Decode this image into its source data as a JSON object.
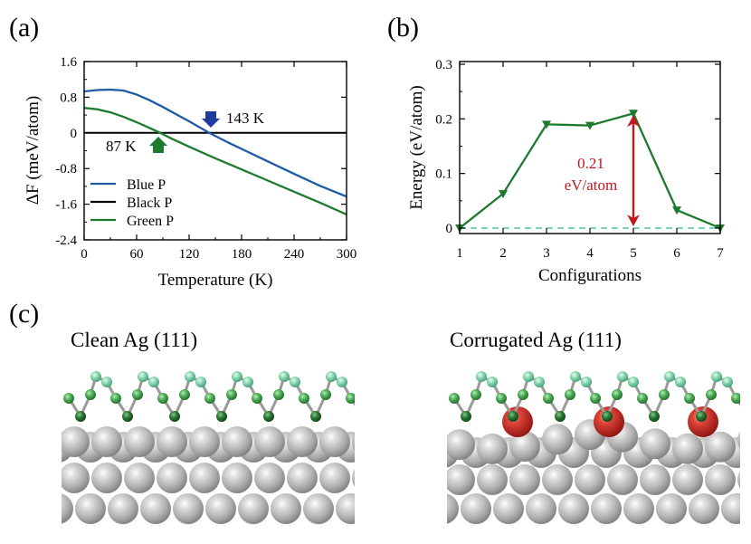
{
  "panels": {
    "a_label": "(a)",
    "b_label": "(b)",
    "c_label": "(c)"
  },
  "chart_data": [
    {
      "id": "a",
      "type": "line",
      "xlabel": "Temperature (K)",
      "ylabel": "ΔF (meV/atom)",
      "xlim": [
        0,
        300
      ],
      "ylim": [
        -2.4,
        1.6
      ],
      "xticks": [
        "0",
        "60",
        "120",
        "180",
        "240",
        "300"
      ],
      "yticks": [
        "-2.4",
        "-1.6",
        "-0.8",
        "0",
        "0.8",
        "1.6"
      ],
      "legend_position": "bottom-left",
      "series": [
        {
          "name": "Blue P",
          "color": "#1f5aa6",
          "x": [
            0,
            15,
            30,
            45,
            60,
            75,
            90,
            105,
            120,
            143,
            165,
            180,
            210,
            240,
            270,
            300
          ],
          "y": [
            0.93,
            0.96,
            0.97,
            0.95,
            0.86,
            0.73,
            0.58,
            0.42,
            0.26,
            0.0,
            -0.22,
            -0.36,
            -0.64,
            -0.92,
            -1.19,
            -1.43
          ]
        },
        {
          "name": "Black P",
          "color": "#000000",
          "x": [
            0,
            300
          ],
          "y": [
            0,
            0
          ]
        },
        {
          "name": "Green P",
          "color": "#1e7a2e",
          "x": [
            0,
            15,
            30,
            45,
            60,
            75,
            87,
            100,
            120,
            150,
            180,
            210,
            240,
            270,
            300
          ],
          "y": [
            0.56,
            0.53,
            0.46,
            0.36,
            0.24,
            0.11,
            0.0,
            -0.13,
            -0.31,
            -0.57,
            -0.82,
            -1.07,
            -1.32,
            -1.57,
            -1.83
          ]
        }
      ],
      "annotations": [
        {
          "text": "143 K",
          "x": 143,
          "arrow": "down",
          "color": "#1f3d9e"
        },
        {
          "text": "87 K",
          "x": 87,
          "arrow": "up",
          "color": "#1e7a2e"
        }
      ]
    },
    {
      "id": "b",
      "type": "line",
      "xlabel": "Configurations",
      "ylabel": "Energy (eV/atom)",
      "xlim": [
        1,
        7
      ],
      "ylim": [
        -0.01,
        0.305
      ],
      "xticks": [
        "1",
        "2",
        "3",
        "4",
        "5",
        "6",
        "7"
      ],
      "yticks": [
        "0",
        "0.1",
        "0.2",
        "0.3"
      ],
      "series": [
        {
          "name": "Energy",
          "color": "#1e7a2e",
          "x": [
            1,
            2,
            3,
            4,
            5,
            6,
            7
          ],
          "y": [
            0.0,
            0.063,
            0.19,
            0.188,
            0.21,
            0.033,
            0.0
          ]
        }
      ],
      "reference_line": {
        "y": 0,
        "style": "dashed",
        "color": "#6fc9b7"
      },
      "annotation": {
        "line1": "0.21",
        "line2": "eV/atom",
        "x": 5,
        "y_from": 0,
        "y_to": 0.21,
        "color": "#c01818"
      }
    }
  ],
  "panel_c": {
    "left_title": "Clean Ag (111)",
    "right_title": "Corrugated Ag (111)"
  }
}
